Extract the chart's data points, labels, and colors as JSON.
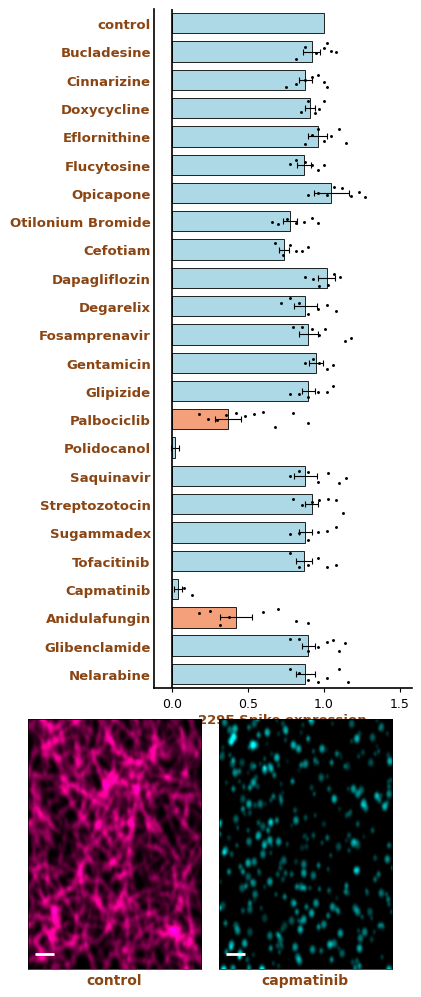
{
  "categories": [
    "control",
    "Bucladesine",
    "Cinnarizine",
    "Doxycycline",
    "Eflornithine",
    "Flucytosine",
    "Opicapone",
    "Otilonium Bromide",
    "Cefotiam",
    "Dapagliflozin",
    "Degarelix",
    "Fosamprenavir",
    "Gentamicin",
    "Glipizide",
    "Palbociclib",
    "Polidocanol",
    "Saquinavir",
    "Streptozotocin",
    "Sugammadex",
    "Tofacitinib",
    "Capmatinib",
    "Anidulafungin",
    "Glibenclamide",
    "Nelarabine"
  ],
  "values": [
    1.0,
    0.92,
    0.88,
    0.91,
    0.96,
    0.87,
    1.05,
    0.78,
    0.74,
    1.02,
    0.88,
    0.9,
    0.95,
    0.9,
    0.37,
    0.02,
    0.88,
    0.92,
    0.88,
    0.87,
    0.04,
    0.42,
    0.9,
    0.88
  ],
  "errors": [
    0.0,
    0.055,
    0.045,
    0.035,
    0.065,
    0.045,
    0.115,
    0.045,
    0.035,
    0.055,
    0.075,
    0.065,
    0.045,
    0.045,
    0.085,
    0.025,
    0.075,
    0.045,
    0.045,
    0.055,
    0.025,
    0.105,
    0.045,
    0.065
  ],
  "bar_colors": [
    "#add8e6",
    "#add8e6",
    "#add8e6",
    "#add8e6",
    "#add8e6",
    "#add8e6",
    "#add8e6",
    "#add8e6",
    "#add8e6",
    "#add8e6",
    "#add8e6",
    "#add8e6",
    "#add8e6",
    "#add8e6",
    "#f4a07a",
    "#add8e6",
    "#add8e6",
    "#add8e6",
    "#add8e6",
    "#add8e6",
    "#add8e6",
    "#f4a07a",
    "#add8e6",
    "#add8e6"
  ],
  "dot_data": {
    "control": [],
    "Bucladesine": [
      0.82,
      0.88,
      0.95,
      1.0,
      1.02,
      1.05,
      1.08
    ],
    "Cinnarizine": [
      0.75,
      0.82,
      0.88,
      0.92,
      0.96,
      1.0,
      1.02
    ],
    "Doxycycline": [
      0.85,
      0.9,
      0.94,
      0.97,
      1.0
    ],
    "Eflornithine": [
      0.88,
      0.92,
      0.96,
      1.0,
      1.05,
      1.1,
      1.15
    ],
    "Flucytosine": [
      0.78,
      0.82,
      0.88,
      0.92,
      0.96,
      1.0
    ],
    "Opicapone": [
      0.9,
      0.96,
      1.02,
      1.07,
      1.12,
      1.18,
      1.23,
      1.27
    ],
    "Otilonium Bromide": [
      0.66,
      0.7,
      0.76,
      0.82,
      0.87,
      0.92,
      0.96
    ],
    "Cefotiam": [
      0.68,
      0.73,
      0.78,
      0.82,
      0.86,
      0.9
    ],
    "Dapagliflozin": [
      0.88,
      0.93,
      0.97,
      1.03,
      1.07,
      1.11
    ],
    "Degarelix": [
      0.72,
      0.78,
      0.84,
      0.9,
      0.96,
      1.02,
      1.08
    ],
    "Fosamprenavir": [
      0.8,
      0.86,
      0.92,
      0.97,
      1.01,
      1.14,
      1.18
    ],
    "Gentamicin": [
      0.88,
      0.93,
      0.97,
      1.02,
      1.06
    ],
    "Glipizide": [
      0.78,
      0.84,
      0.9,
      0.96,
      1.02,
      1.06
    ],
    "Palbociclib": [
      0.18,
      0.24,
      0.3,
      0.36,
      0.42,
      0.48,
      0.54,
      0.6,
      0.68,
      0.8,
      0.9
    ],
    "Polidocanol": [],
    "Saquinavir": [
      0.78,
      0.84,
      0.9,
      0.96,
      1.03,
      1.1,
      1.15
    ],
    "Streptozotocin": [
      0.8,
      0.86,
      0.92,
      0.97,
      1.03,
      1.08,
      1.13
    ],
    "Sugammadex": [
      0.78,
      0.84,
      0.9,
      0.96,
      1.02,
      1.08
    ],
    "Tofacitinib": [
      0.78,
      0.84,
      0.9,
      0.96,
      1.02,
      1.08
    ],
    "Capmatinib": [
      0.08,
      0.13
    ],
    "Anidulafungin": [
      0.18,
      0.25,
      0.32,
      0.38,
      0.6,
      0.7,
      0.82,
      0.9
    ],
    "Glibenclamide": [
      0.78,
      0.84,
      0.9,
      0.96,
      1.02,
      1.06,
      1.1,
      1.14
    ],
    "Nelarabine": [
      0.78,
      0.84,
      0.9,
      0.96,
      1.02,
      1.1,
      1.16
    ]
  },
  "xlabel": "229E Spike expression",
  "xlim": [
    -0.12,
    1.58
  ],
  "xticks": [
    0.0,
    0.5,
    1.0,
    1.5
  ],
  "label_color": "#8B4513",
  "img_label_color": "#8B4513",
  "bar_edge_color": "#000000",
  "label_fontsize": 9.5,
  "xlabel_fontsize": 9.5,
  "xtick_fontsize": 9.0
}
